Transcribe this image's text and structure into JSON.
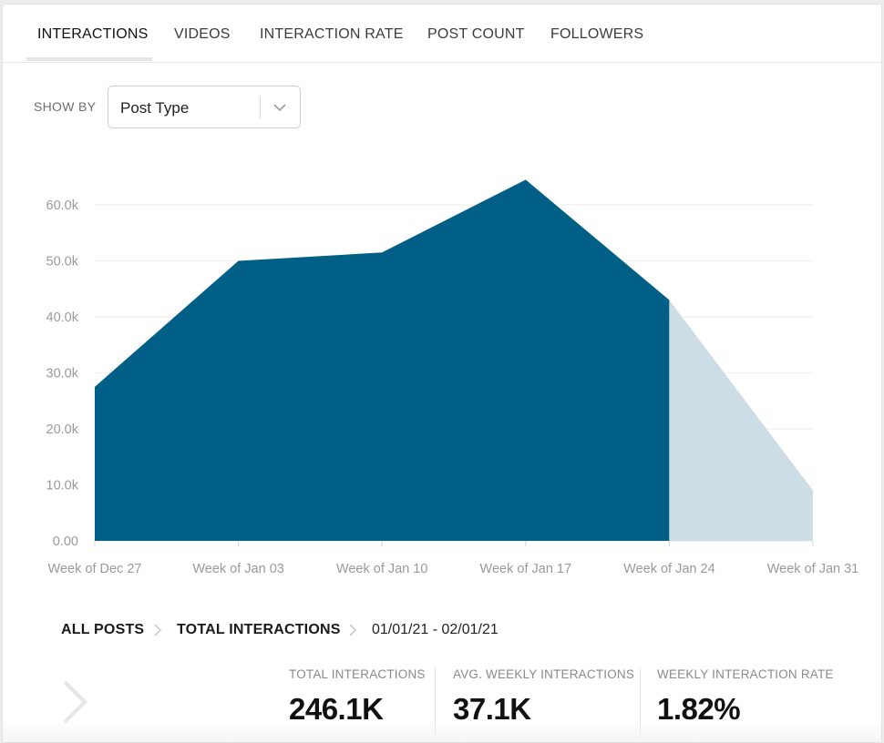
{
  "tabs": [
    {
      "label": "INTERACTIONS",
      "active": true
    },
    {
      "label": "VIDEOS",
      "active": false
    },
    {
      "label": "INTERACTION RATE",
      "active": false
    },
    {
      "label": "POST COUNT",
      "active": false
    },
    {
      "label": "FOLLOWERS",
      "active": false
    }
  ],
  "show_by": {
    "label": "SHOW BY",
    "selected": "Post Type"
  },
  "chart_data": {
    "type": "area",
    "title": "",
    "xlabel": "",
    "ylabel": "",
    "categories": [
      "Week of Dec 27",
      "Week of Jan 03",
      "Week of Jan 10",
      "Week of Jan 17",
      "Week of Jan 24",
      "Week of Jan 31"
    ],
    "series": [
      {
        "name": "Interactions",
        "values": [
          27500,
          50000,
          51500,
          64500,
          43000,
          9000
        ],
        "color": "#005f87",
        "partial_color": "#cddde5",
        "partial_from_index": 4
      }
    ],
    "y_ticks": [
      "0.00",
      "10.0k",
      "20.0k",
      "30.0k",
      "40.0k",
      "50.0k",
      "60.0k"
    ],
    "ylim": [
      0,
      60000
    ],
    "grid": true
  },
  "breadcrumb": {
    "all_posts": "ALL POSTS",
    "metric": "TOTAL INTERACTIONS",
    "date_range": "01/01/21 - 02/01/21"
  },
  "stats": [
    {
      "label": "TOTAL INTERACTIONS",
      "value": "246.1K"
    },
    {
      "label": "AVG. WEEKLY INTERACTIONS",
      "value": "37.1K"
    },
    {
      "label": "WEEKLY INTERACTION RATE",
      "value": "1.82%"
    }
  ],
  "colors": {
    "accent": "#005f87",
    "projection": "#cddde5",
    "grid": "#eeeeee"
  }
}
